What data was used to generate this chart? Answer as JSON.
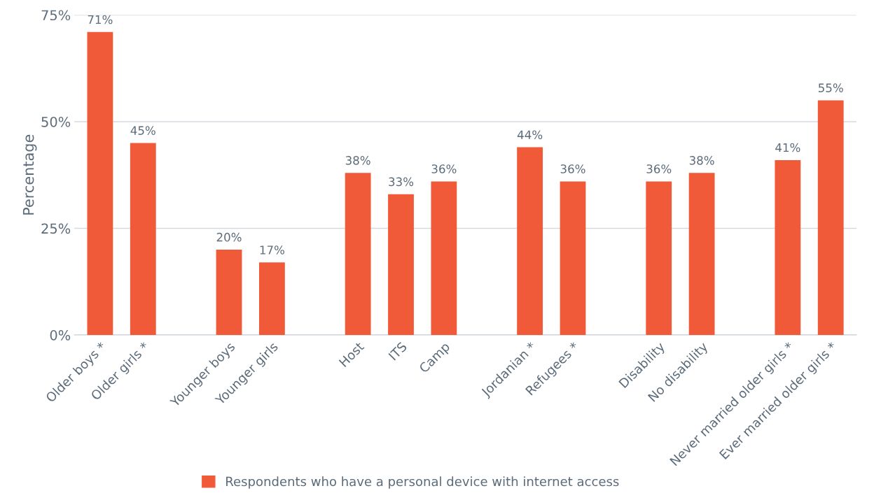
{
  "chart_data": {
    "type": "bar",
    "ylabel": "Percentage",
    "categories": [
      "Older boys *",
      "Older girls *",
      null,
      "Younger boys",
      "Younger girls",
      null,
      "Host",
      "ITS",
      "Camp",
      null,
      "Jordanian *",
      "Refugees *",
      null,
      "Disability",
      "No disability",
      null,
      "Never married older girls *",
      "Ever married older girls *"
    ],
    "series": [
      {
        "name": "Respondents who have a personal device with internet access",
        "color": "#f15a38",
        "values": [
          71,
          45,
          null,
          20,
          17,
          null,
          38,
          33,
          36,
          null,
          44,
          36,
          null,
          36,
          38,
          null,
          41,
          55
        ],
        "value_labels": [
          "71%",
          "45%",
          null,
          "20%",
          "17%",
          null,
          "38%",
          "33%",
          "36%",
          null,
          "44%",
          "36%",
          null,
          "36%",
          "38%",
          null,
          "41%",
          "55%"
        ]
      }
    ],
    "ylim": [
      0,
      75
    ],
    "yticks": [
      {
        "value": 0,
        "label": "0%"
      },
      {
        "value": 25,
        "label": "25%"
      },
      {
        "value": 50,
        "label": "50%"
      },
      {
        "value": 75,
        "label": "75%"
      }
    ],
    "grid": "y",
    "legend": "bottom"
  }
}
